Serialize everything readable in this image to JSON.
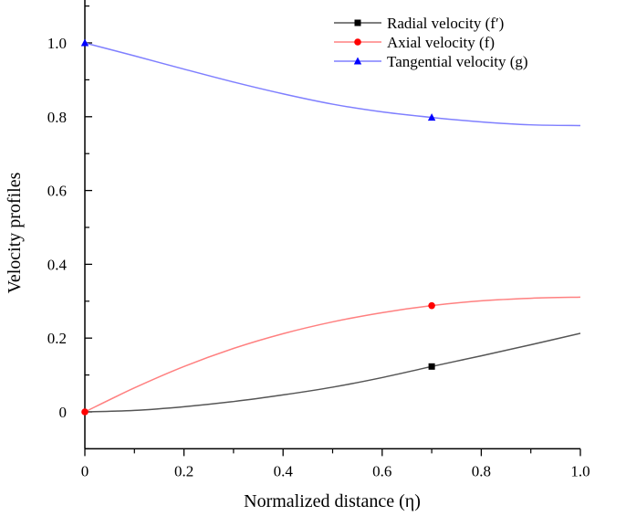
{
  "chart_data": {
    "type": "line",
    "xlabel": "Normalized distance (η)",
    "ylabel": "Velocity profiles",
    "xlim": [
      0,
      1.0
    ],
    "ylim": [
      -0.1,
      1.1
    ],
    "xticks": [
      0,
      0.2,
      0.4,
      0.6,
      0.8,
      1.0
    ],
    "xtick_labels": [
      "0",
      "0.2",
      "0.4",
      "0.6",
      "0.8",
      "1.0"
    ],
    "yticks": [
      0,
      0.2,
      0.4,
      0.6,
      0.8,
      1.0
    ],
    "ytick_labels": [
      "0",
      "0.2",
      "0.4",
      "0.6",
      "0.8",
      "1.0"
    ],
    "grid": false,
    "legend_position": "top-right",
    "series": [
      {
        "name": "Radial velocity (f′)",
        "color": "#555555",
        "marker": "square",
        "marker_color": "#000000",
        "x": [
          0,
          0.1,
          0.2,
          0.3,
          0.4,
          0.5,
          0.6,
          0.7,
          0.8,
          0.9,
          1.0
        ],
        "y": [
          0,
          0.004,
          0.014,
          0.028,
          0.046,
          0.067,
          0.093,
          0.123,
          0.152,
          0.182,
          0.213
        ],
        "marker_x": [
          0.7
        ],
        "marker_y": [
          0.123
        ]
      },
      {
        "name": "Axial velocity (f)",
        "color": "#ff8080",
        "marker": "circle",
        "marker_color": "#ff0000",
        "x": [
          0,
          0.1,
          0.2,
          0.3,
          0.4,
          0.5,
          0.6,
          0.7,
          0.8,
          0.9,
          1.0
        ],
        "y": [
          0,
          0.065,
          0.123,
          0.172,
          0.212,
          0.244,
          0.269,
          0.288,
          0.301,
          0.308,
          0.311
        ],
        "marker_x": [
          0,
          0.7
        ],
        "marker_y": [
          0,
          0.288
        ]
      },
      {
        "name": "Tangential velocity (g)",
        "color": "#7f7fff",
        "marker": "triangle",
        "marker_color": "#0000ff",
        "x": [
          0,
          0.1,
          0.2,
          0.3,
          0.4,
          0.5,
          0.6,
          0.7,
          0.8,
          0.9,
          1.0
        ],
        "y": [
          1.0,
          0.965,
          0.929,
          0.894,
          0.862,
          0.834,
          0.813,
          0.798,
          0.786,
          0.778,
          0.776
        ],
        "marker_x": [
          0,
          0.7
        ],
        "marker_y": [
          1.0,
          0.798
        ]
      }
    ]
  }
}
